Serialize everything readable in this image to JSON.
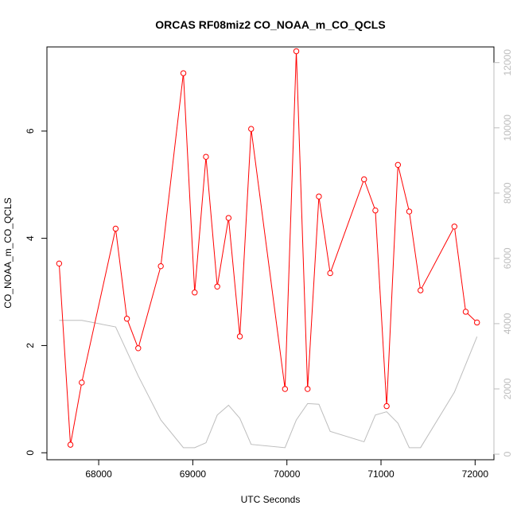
{
  "chart_data": {
    "type": "line",
    "title": "ORCAS RF08miz2 CO_NOAA_m_CO_QCLS",
    "xlabel": "UTC Seconds",
    "ylabel": "CO_NOAA_m_CO_QCLS",
    "xlim": [
      67450,
      72200
    ],
    "ylim": [
      -0.13,
      7.57
    ],
    "y2lim": [
      -170,
      12480
    ],
    "x_ticks": [
      68000,
      69000,
      70000,
      71000,
      72000
    ],
    "y_ticks": [
      0,
      2,
      4,
      6
    ],
    "y2_ticks": [
      0,
      2000,
      4000,
      6000,
      8000,
      10000,
      12000
    ],
    "x_tick_labels": [
      "68000",
      "69000",
      "70000",
      "71000",
      "72000"
    ],
    "y_tick_labels": [
      "0",
      "2",
      "4",
      "6"
    ],
    "y2_tick_labels": [
      "0",
      "2000",
      "4000",
      "6000",
      "8000",
      "10000",
      "12000"
    ],
    "grid": false,
    "legend": "none",
    "series": [
      {
        "axis": "left",
        "color": "#ff0000",
        "style": "line+open-circle",
        "x": [
          67580,
          67700,
          67820,
          68180,
          68300,
          68420,
          68660,
          68900,
          69020,
          69140,
          69260,
          69380,
          69500,
          69620,
          69980,
          70100,
          70220,
          70340,
          70460,
          70820,
          70940,
          71060,
          71180,
          71300,
          71420,
          71780,
          71900,
          72020
        ],
        "values": [
          3.53,
          0.15,
          1.31,
          4.18,
          2.5,
          1.95,
          3.48,
          7.08,
          2.99,
          5.52,
          3.1,
          4.38,
          2.17,
          6.04,
          1.19,
          7.49,
          1.19,
          4.78,
          3.35,
          5.1,
          4.52,
          0.87,
          5.37,
          4.5,
          3.03,
          4.22,
          2.63,
          2.43
        ]
      },
      {
        "axis": "right",
        "color": "#bdbdbd",
        "style": "line",
        "x": [
          67580,
          67820,
          68180,
          68420,
          68660,
          68900,
          69020,
          69140,
          69260,
          69380,
          69500,
          69620,
          69980,
          70100,
          70220,
          70340,
          70460,
          70820,
          70940,
          71060,
          71180,
          71300,
          71420,
          71780,
          72020
        ],
        "values": [
          4100,
          4100,
          3900,
          2400,
          1050,
          200,
          200,
          350,
          1200,
          1500,
          1100,
          300,
          200,
          1050,
          1550,
          1530,
          700,
          380,
          1200,
          1300,
          950,
          200,
          200,
          1900,
          3600
        ]
      }
    ]
  }
}
